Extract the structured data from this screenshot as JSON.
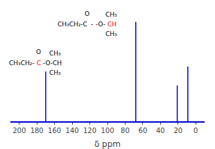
{
  "chart_data": {
    "type": "stem",
    "xlabel": "δ ppm",
    "x": [
      170,
      68,
      21,
      9
    ],
    "values": [
      0.5,
      1.0,
      0.36,
      0.55
    ],
    "color": "#0000cc",
    "xlim": [
      210,
      -10
    ],
    "xticks": [
      200,
      180,
      160,
      140,
      120,
      100,
      80,
      60,
      40,
      20,
      0
    ],
    "ylim": [
      0,
      1.15
    ],
    "tick_labels": "x",
    "grid": false,
    "annotations": [
      {
        "text": "O",
        "color": "#000000"
      },
      {
        "text": "CH₃CH₂-C",
        "color": "#000000"
      },
      {
        "text": "-",
        "color": "#000000"
      },
      {
        "text": "-O-",
        "color": "#000000"
      },
      {
        "text": "CH",
        "color": "#ff0000"
      },
      {
        "text": "CH₃",
        "color": "#000000"
      },
      {
        "text": "CH₃",
        "color": "#000000"
      },
      {
        "text": "O",
        "color": "#000000"
      },
      {
        "text": "CH₃CH₂-",
        "color": "#000000"
      },
      {
        "text": "C",
        "color": "#ff0000"
      },
      {
        "text": "-O-CH",
        "color": "#000000"
      },
      {
        "text": "CH₃",
        "color": "#000000"
      },
      {
        "text": "CH₃",
        "color": "#000000"
      }
    ]
  }
}
